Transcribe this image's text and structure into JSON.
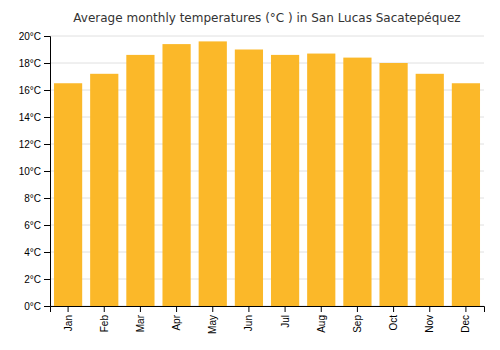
{
  "chart_data": {
    "type": "bar",
    "title": "Average monthly temperatures (°C ) in San Lucas Sacatepéquez",
    "categories": [
      "Jan",
      "Feb",
      "Mar",
      "Apr",
      "May",
      "Jun",
      "Jul",
      "Aug",
      "Sep",
      "Oct",
      "Nov",
      "Dec"
    ],
    "values": [
      16.5,
      17.2,
      18.6,
      19.4,
      19.6,
      19.0,
      18.6,
      18.7,
      18.4,
      18.0,
      17.2,
      16.5
    ],
    "color": "#FBB829",
    "ylim": [
      0,
      20
    ],
    "yticks": [
      {
        "value": 0,
        "label": "0°C"
      },
      {
        "value": 2,
        "label": "2°C"
      },
      {
        "value": 4,
        "label": "4°C"
      },
      {
        "value": 6,
        "label": "6°C"
      },
      {
        "value": 8,
        "label": "8°C"
      },
      {
        "value": 10,
        "label": "10°C"
      },
      {
        "value": 12,
        "label": "12°C"
      },
      {
        "value": 14,
        "label": "14°C"
      },
      {
        "value": 16,
        "label": "16°C"
      },
      {
        "value": 18,
        "label": "18°C"
      },
      {
        "value": 20,
        "label": "20°C"
      }
    ],
    "grid": true
  }
}
